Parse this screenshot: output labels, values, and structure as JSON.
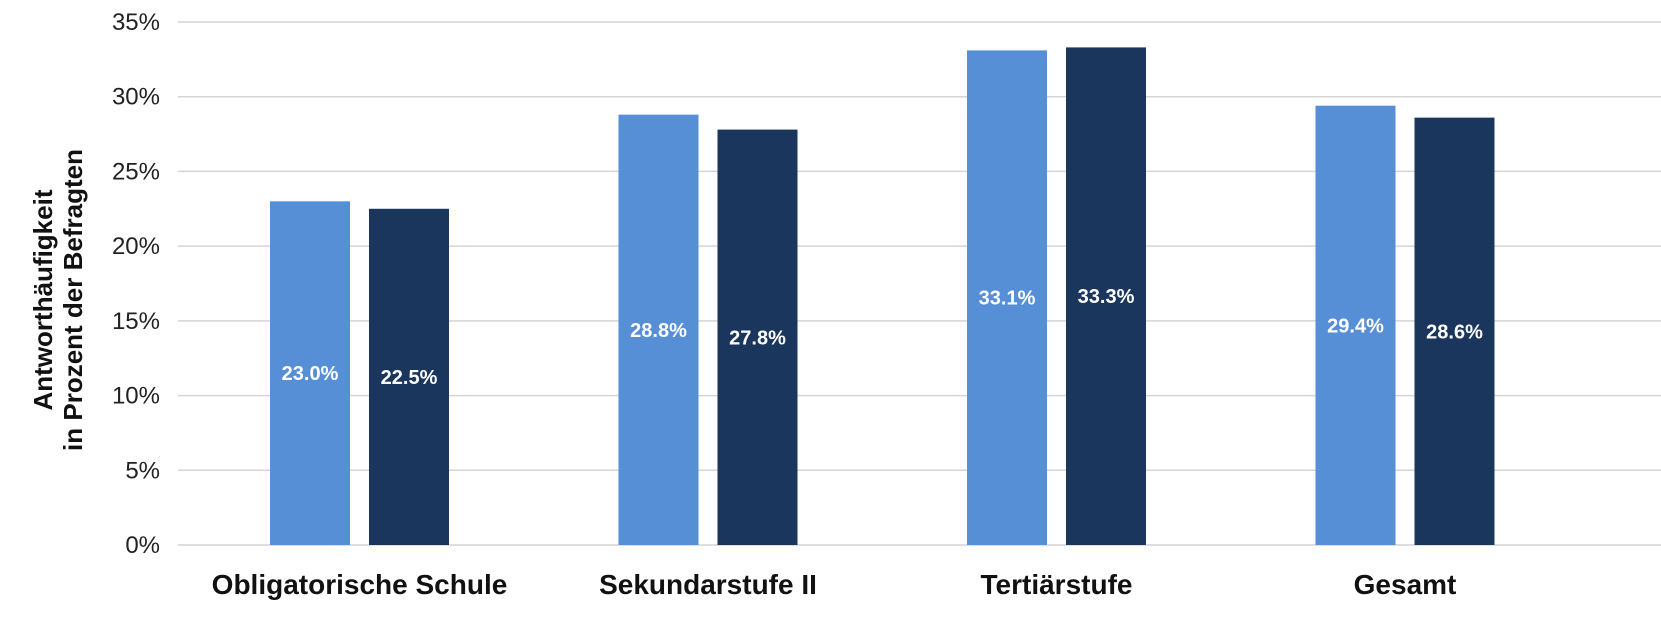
{
  "chart_data": {
    "type": "bar",
    "categories": [
      "Obligatorische Schule",
      "Sekundarstufe II",
      "Tertiärstufe",
      "Gesamt"
    ],
    "series": [
      {
        "values": [
          23.0,
          28.8,
          33.1,
          29.4
        ],
        "labels": [
          "23.0%",
          "28.8%",
          "33.1%",
          "29.4%"
        ],
        "color": "#568FD6"
      },
      {
        "values": [
          22.5,
          27.8,
          33.3,
          28.6
        ],
        "labels": [
          "22.5%",
          "27.8%",
          "33.3%",
          "28.6%"
        ],
        "color": "#1A365D"
      }
    ],
    "ylabel_lines": [
      "Antworthäufigkeit",
      "in Prozent der Befragten"
    ],
    "ylim": [
      0,
      35
    ],
    "yticks": [
      0,
      5,
      10,
      15,
      20,
      25,
      30,
      35
    ],
    "ytick_labels": [
      "0%",
      "5%",
      "10%",
      "15%",
      "20%",
      "25%",
      "30%",
      "35%"
    ],
    "grid": true,
    "legend": "none"
  }
}
